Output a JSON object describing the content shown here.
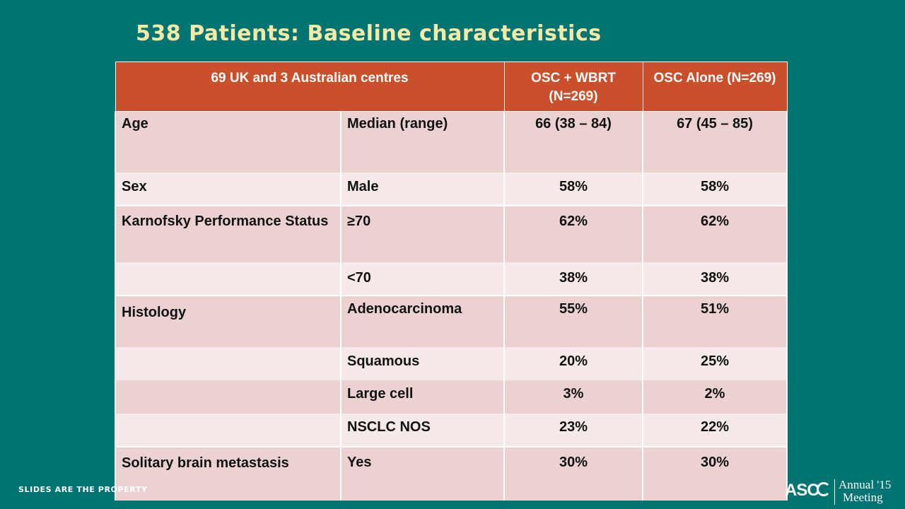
{
  "title": "538 Patients: Baseline characteristics",
  "footer_text": "SLIDES ARE THE PROPERTY",
  "logo": {
    "brand": "ASC",
    "line1": "Annual '15",
    "line2": "Meeting"
  },
  "table": {
    "headers": [
      "69 UK and 3 Australian centres",
      "OSC + WBRT (N=269)",
      "OSC Alone (N=269)"
    ],
    "rows": [
      {
        "c1": "Age",
        "c2": "Median (range)",
        "c3": "66 (38 – 84)",
        "c4": "67 (45 – 85)"
      },
      {
        "c1": "Sex",
        "c2": "Male",
        "c3": "58%",
        "c4": "58%"
      },
      {
        "c1": "Karnofsky Performance Status",
        "c2": "≥70",
        "c3": "62%",
        "c4": "62%"
      },
      {
        "c1": "",
        "c2": "<70",
        "c3": "38%",
        "c4": "38%"
      },
      {
        "c1": "Histology",
        "c2": "Adenocarcinoma",
        "c3": "55%",
        "c4": "51%"
      },
      {
        "c1": "",
        "c2": "Squamous",
        "c3": "20%",
        "c4": "25%"
      },
      {
        "c1": "",
        "c2": "Large cell",
        "c3": "3%",
        "c4": "2%"
      },
      {
        "c1": "",
        "c2": "NSCLC NOS",
        "c3": "23%",
        "c4": "22%"
      },
      {
        "c1": "Solitary brain metastasis",
        "c2": "Yes",
        "c3": "30%",
        "c4": "30%"
      }
    ]
  }
}
